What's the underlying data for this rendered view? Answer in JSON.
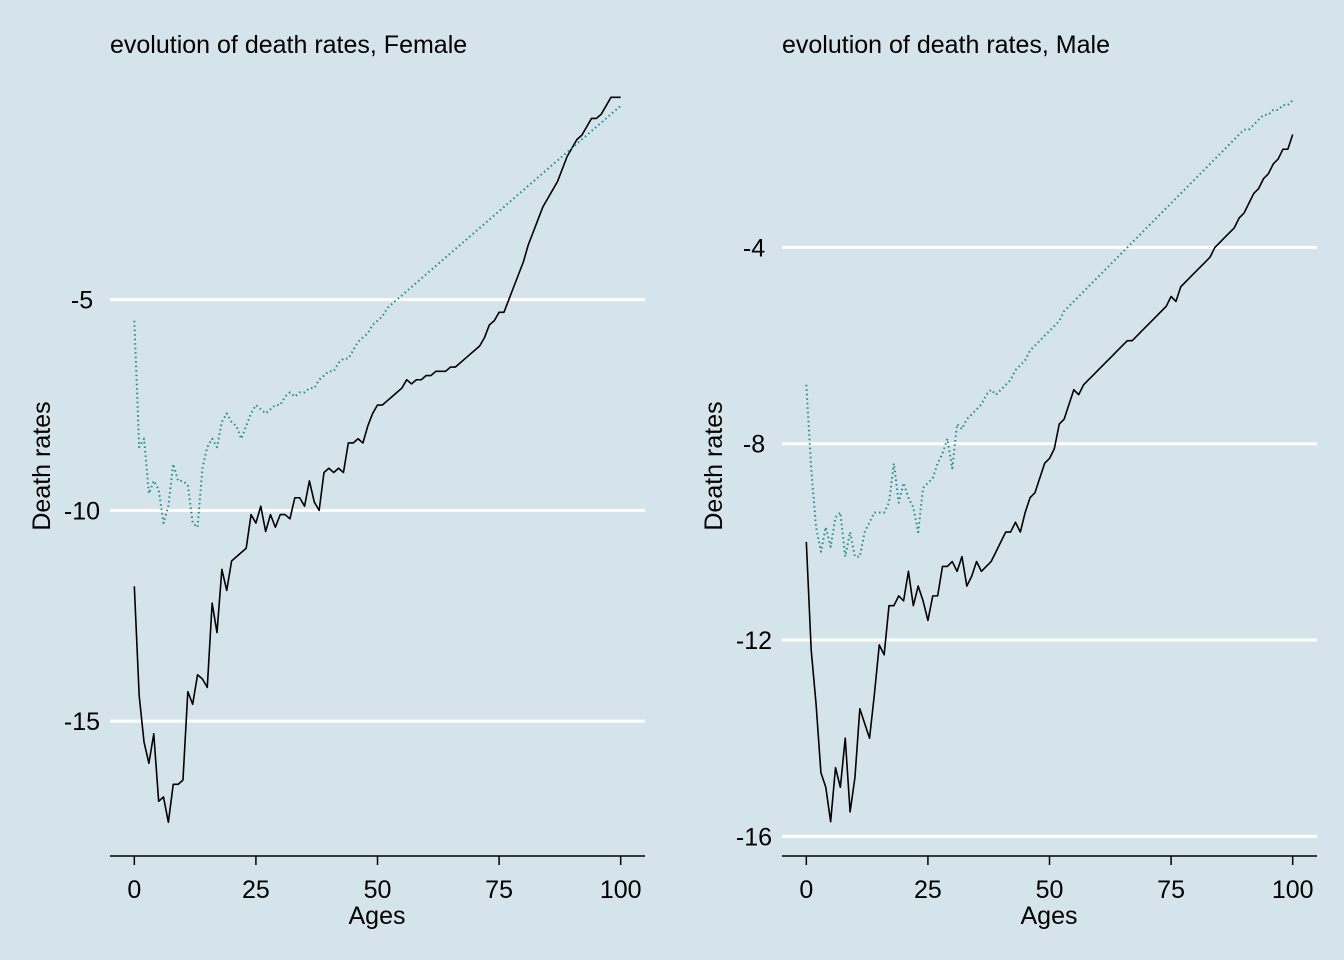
{
  "chart_data": [
    {
      "type": "line",
      "title": "evolution of death rates, Female",
      "xlabel": "Ages",
      "ylabel": "Death rates",
      "xlim": [
        -5,
        105
      ],
      "ylim": [
        -18.2,
        -0.5
      ],
      "xticks": [
        0,
        25,
        50,
        75,
        100
      ],
      "xtick_labels": [
        "0",
        "25",
        "50",
        "75",
        "100"
      ],
      "yticks": [
        -15,
        -10,
        -5
      ],
      "ytick_labels": [
        "-15",
        "-10",
        "-5"
      ],
      "grid": "horizontal",
      "colors": {
        "series_1": "#000000",
        "series_2": "#1f8a8a"
      },
      "series": [
        {
          "style": "solid",
          "x": [
            0,
            1,
            2,
            3,
            4,
            5,
            6,
            7,
            8,
            9,
            10,
            11,
            12,
            13,
            14,
            15,
            16,
            17,
            18,
            19,
            20,
            21,
            22,
            23,
            24,
            25,
            26,
            27,
            28,
            29,
            30,
            31,
            32,
            33,
            34,
            35,
            36,
            37,
            38,
            39,
            40,
            41,
            42,
            43,
            44,
            45,
            46,
            47,
            48,
            49,
            50,
            51,
            52,
            53,
            54,
            55,
            56,
            57,
            58,
            59,
            60,
            61,
            62,
            63,
            64,
            65,
            66,
            67,
            68,
            69,
            70,
            71,
            72,
            73,
            74,
            75,
            76,
            77,
            78,
            79,
            80,
            81,
            82,
            83,
            84,
            85,
            86,
            87,
            88,
            89,
            90,
            91,
            92,
            93,
            94,
            95,
            96,
            97,
            98,
            99,
            100
          ],
          "values": [
            -11.8,
            -14.4,
            -15.5,
            -16.0,
            -15.3,
            -16.9,
            -16.8,
            -17.4,
            -16.5,
            -16.5,
            -16.4,
            -14.3,
            -14.6,
            -13.9,
            -14.0,
            -14.2,
            -12.2,
            -12.9,
            -11.4,
            -11.9,
            -11.2,
            -11.1,
            -11.0,
            -10.9,
            -10.1,
            -10.3,
            -9.9,
            -10.5,
            -10.1,
            -10.4,
            -10.1,
            -10.1,
            -10.2,
            -9.7,
            -9.7,
            -9.9,
            -9.3,
            -9.8,
            -10.0,
            -9.1,
            -9.0,
            -9.1,
            -9.0,
            -9.1,
            -8.4,
            -8.4,
            -8.3,
            -8.4,
            -8.0,
            -7.7,
            -7.5,
            -7.5,
            -7.4,
            -7.3,
            -7.2,
            -7.1,
            -6.9,
            -7.0,
            -6.9,
            -6.9,
            -6.8,
            -6.8,
            -6.7,
            -6.7,
            -6.7,
            -6.6,
            -6.6,
            -6.5,
            -6.4,
            -6.3,
            -6.2,
            -6.1,
            -5.9,
            -5.6,
            -5.5,
            -5.3,
            -5.3,
            -5.0,
            -4.7,
            -4.4,
            -4.1,
            -3.7,
            -3.4,
            -3.1,
            -2.8,
            -2.6,
            -2.4,
            -2.2,
            -1.9,
            -1.6,
            -1.4,
            -1.2,
            -1.1,
            -0.9,
            -0.7,
            -0.7,
            -0.6,
            -0.4,
            -0.2,
            -0.2,
            -0.2
          ]
        },
        {
          "style": "dotted",
          "x": [
            0,
            1,
            2,
            3,
            4,
            5,
            6,
            7,
            8,
            9,
            10,
            11,
            12,
            13,
            14,
            15,
            16,
            17,
            18,
            19,
            20,
            21,
            22,
            23,
            24,
            25,
            26,
            27,
            28,
            29,
            30,
            31,
            32,
            33,
            34,
            35,
            36,
            37,
            38,
            39,
            40,
            41,
            42,
            43,
            44,
            45,
            46,
            47,
            48,
            49,
            50,
            51,
            52,
            53,
            54,
            55,
            56,
            57,
            58,
            59,
            60,
            61,
            62,
            63,
            64,
            65,
            66,
            67,
            68,
            69,
            70,
            71,
            72,
            73,
            74,
            75,
            76,
            77,
            78,
            79,
            80,
            81,
            82,
            83,
            84,
            85,
            86,
            87,
            88,
            89,
            90,
            91,
            92,
            93,
            94,
            95,
            96,
            97,
            98,
            99,
            100
          ],
          "values": [
            -5.5,
            -8.5,
            -8.3,
            -9.6,
            -9.3,
            -9.5,
            -10.3,
            -9.9,
            -8.9,
            -9.3,
            -9.3,
            -9.4,
            -10.3,
            -10.4,
            -9.0,
            -8.5,
            -8.3,
            -8.5,
            -7.9,
            -7.7,
            -7.9,
            -8.0,
            -8.3,
            -8.0,
            -7.7,
            -7.5,
            -7.6,
            -7.7,
            -7.6,
            -7.5,
            -7.5,
            -7.3,
            -7.2,
            -7.3,
            -7.2,
            -7.2,
            -7.1,
            -7.1,
            -6.9,
            -6.8,
            -6.7,
            -6.7,
            -6.5,
            -6.4,
            -6.4,
            -6.2,
            -6.0,
            -5.9,
            -5.8,
            -5.6,
            -5.5,
            -5.4,
            -5.2,
            -5.1,
            -5.0,
            -4.9,
            -4.8,
            -4.7,
            -4.6,
            -4.5,
            -4.4,
            -4.3,
            -4.2,
            -4.1,
            -4.0,
            -3.9,
            -3.8,
            -3.7,
            -3.6,
            -3.5,
            -3.4,
            -3.3,
            -3.2,
            -3.1,
            -3.0,
            -2.9,
            -2.8,
            -2.7,
            -2.6,
            -2.5,
            -2.4,
            -2.3,
            -2.2,
            -2.1,
            -2.0,
            -1.9,
            -1.8,
            -1.7,
            -1.6,
            -1.5,
            -1.4,
            -1.3,
            -1.2,
            -1.1,
            -1.0,
            -0.9,
            -0.8,
            -0.7,
            -0.6,
            -0.5,
            -0.4
          ]
        }
      ]
    },
    {
      "type": "line",
      "title": "evolution of death rates, Male",
      "xlabel": "Ages",
      "ylabel": "Death rates",
      "xlim": [
        -5,
        105
      ],
      "ylim": [
        -16.4,
        -1.2
      ],
      "xticks": [
        0,
        25,
        50,
        75,
        100
      ],
      "xtick_labels": [
        "0",
        "25",
        "50",
        "75",
        "100"
      ],
      "yticks": [
        -16,
        -12,
        -8,
        -4
      ],
      "ytick_labels": [
        "-16",
        "-12",
        "-8",
        "-4"
      ],
      "grid": "horizontal",
      "colors": {
        "series_1": "#000000",
        "series_2": "#1f8a8a"
      },
      "series": [
        {
          "style": "solid",
          "x": [
            0,
            1,
            2,
            3,
            4,
            5,
            6,
            7,
            8,
            9,
            10,
            11,
            12,
            13,
            14,
            15,
            16,
            17,
            18,
            19,
            20,
            21,
            22,
            23,
            24,
            25,
            26,
            27,
            28,
            29,
            30,
            31,
            32,
            33,
            34,
            35,
            36,
            37,
            38,
            39,
            40,
            41,
            42,
            43,
            44,
            45,
            46,
            47,
            48,
            49,
            50,
            51,
            52,
            53,
            54,
            55,
            56,
            57,
            58,
            59,
            60,
            61,
            62,
            63,
            64,
            65,
            66,
            67,
            68,
            69,
            70,
            71,
            72,
            73,
            74,
            75,
            76,
            77,
            78,
            79,
            80,
            81,
            82,
            83,
            84,
            85,
            86,
            87,
            88,
            89,
            90,
            91,
            92,
            93,
            94,
            95,
            96,
            97,
            98,
            99,
            100
          ],
          "values": [
            -10.0,
            -12.2,
            -13.3,
            -14.7,
            -15.0,
            -15.7,
            -14.6,
            -15.0,
            -14.0,
            -15.5,
            -14.8,
            -13.4,
            -13.7,
            -14.0,
            -13.1,
            -12.1,
            -12.3,
            -11.3,
            -11.3,
            -11.1,
            -11.2,
            -10.6,
            -11.3,
            -10.9,
            -11.2,
            -11.6,
            -11.1,
            -11.1,
            -10.5,
            -10.5,
            -10.4,
            -10.6,
            -10.3,
            -10.9,
            -10.7,
            -10.4,
            -10.6,
            -10.5,
            -10.4,
            -10.2,
            -10.0,
            -9.8,
            -9.8,
            -9.6,
            -9.8,
            -9.4,
            -9.1,
            -9.0,
            -8.7,
            -8.4,
            -8.3,
            -8.1,
            -7.6,
            -7.5,
            -7.2,
            -6.9,
            -7.0,
            -6.8,
            -6.7,
            -6.6,
            -6.5,
            -6.4,
            -6.3,
            -6.2,
            -6.1,
            -6.0,
            -5.9,
            -5.9,
            -5.8,
            -5.7,
            -5.6,
            -5.5,
            -5.4,
            -5.3,
            -5.2,
            -5.0,
            -5.1,
            -4.8,
            -4.7,
            -4.6,
            -4.5,
            -4.4,
            -4.3,
            -4.2,
            -4.0,
            -3.9,
            -3.8,
            -3.7,
            -3.6,
            -3.4,
            -3.3,
            -3.1,
            -2.9,
            -2.8,
            -2.6,
            -2.5,
            -2.3,
            -2.2,
            -2.0,
            -2.0,
            -1.7
          ]
        },
        {
          "style": "dotted",
          "x": [
            0,
            1,
            2,
            3,
            4,
            5,
            6,
            7,
            8,
            9,
            10,
            11,
            12,
            13,
            14,
            15,
            16,
            17,
            18,
            19,
            20,
            21,
            22,
            23,
            24,
            25,
            26,
            27,
            28,
            29,
            30,
            31,
            32,
            33,
            34,
            35,
            36,
            37,
            38,
            39,
            40,
            41,
            42,
            43,
            44,
            45,
            46,
            47,
            48,
            49,
            50,
            51,
            52,
            53,
            54,
            55,
            56,
            57,
            58,
            59,
            60,
            61,
            62,
            63,
            64,
            65,
            66,
            67,
            68,
            69,
            70,
            71,
            72,
            73,
            74,
            75,
            76,
            77,
            78,
            79,
            80,
            81,
            82,
            83,
            84,
            85,
            86,
            87,
            88,
            89,
            90,
            91,
            92,
            93,
            94,
            95,
            96,
            97,
            98,
            99,
            100
          ],
          "values": [
            -6.8,
            -8.5,
            -9.7,
            -10.2,
            -9.7,
            -10.1,
            -9.5,
            -9.4,
            -10.3,
            -9.8,
            -10.3,
            -10.3,
            -9.8,
            -9.6,
            -9.4,
            -9.4,
            -9.4,
            -9.2,
            -8.4,
            -9.2,
            -8.8,
            -9.1,
            -9.3,
            -9.8,
            -8.9,
            -8.8,
            -8.7,
            -8.4,
            -8.2,
            -7.9,
            -8.5,
            -7.6,
            -7.7,
            -7.5,
            -7.4,
            -7.3,
            -7.2,
            -7.0,
            -6.9,
            -7.0,
            -6.9,
            -6.8,
            -6.7,
            -6.5,
            -6.4,
            -6.3,
            -6.1,
            -6.0,
            -5.9,
            -5.8,
            -5.7,
            -5.6,
            -5.5,
            -5.3,
            -5.2,
            -5.1,
            -5.0,
            -4.9,
            -4.8,
            -4.7,
            -4.6,
            -4.5,
            -4.4,
            -4.3,
            -4.2,
            -4.1,
            -4.0,
            -3.9,
            -3.8,
            -3.7,
            -3.6,
            -3.5,
            -3.4,
            -3.3,
            -3.2,
            -3.1,
            -3.0,
            -2.9,
            -2.8,
            -2.7,
            -2.6,
            -2.5,
            -2.4,
            -2.3,
            -2.2,
            -2.1,
            -2.0,
            -1.9,
            -1.8,
            -1.7,
            -1.6,
            -1.6,
            -1.5,
            -1.4,
            -1.3,
            -1.3,
            -1.2,
            -1.2,
            -1.1,
            -1.1,
            -1.0
          ]
        }
      ]
    }
  ]
}
